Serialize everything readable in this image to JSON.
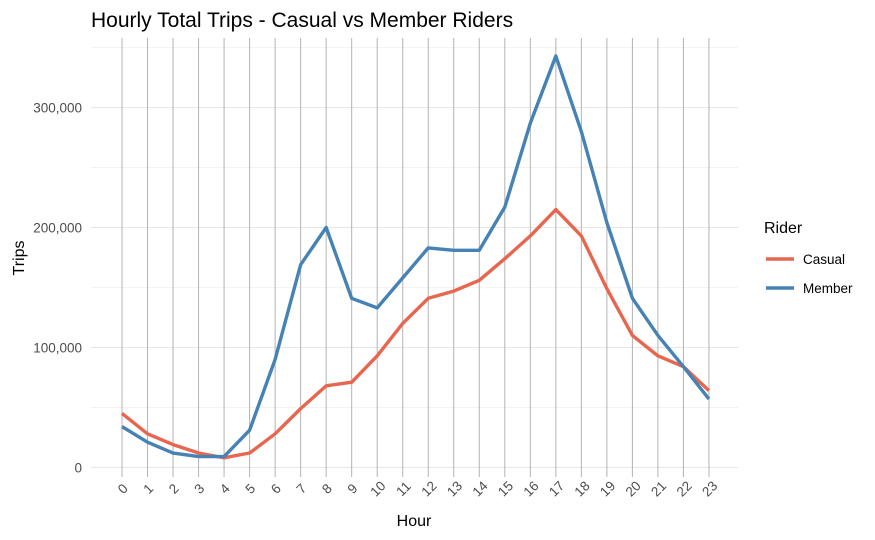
{
  "chart_data": {
    "type": "line",
    "title": "Hourly Total Trips - Casual vs Member Riders",
    "xlabel": "Hour",
    "ylabel": "Trips",
    "x": [
      0,
      1,
      2,
      3,
      4,
      5,
      6,
      7,
      8,
      9,
      10,
      11,
      12,
      13,
      14,
      15,
      16,
      17,
      18,
      19,
      20,
      21,
      22,
      23
    ],
    "x_tick_labels": [
      "0",
      "1",
      "2",
      "3",
      "4",
      "5",
      "6",
      "7",
      "8",
      "9",
      "10",
      "11",
      "12",
      "13",
      "14",
      "15",
      "16",
      "17",
      "18",
      "19",
      "20",
      "21",
      "22",
      "23"
    ],
    "y_ticks": [
      0,
      100000,
      200000,
      300000
    ],
    "y_tick_labels": [
      "0",
      "100,000",
      "200,000",
      "300,000"
    ],
    "ylim": [
      -8000,
      358000
    ],
    "legend_title": "Rider",
    "legend_position": "right",
    "grid": true,
    "series": [
      {
        "name": "Casual",
        "color": "#e8664f",
        "values": [
          45000,
          28000,
          19000,
          12000,
          8000,
          12000,
          28000,
          49000,
          68000,
          71000,
          93000,
          120000,
          141000,
          147000,
          156000,
          174000,
          193000,
          215000,
          193000,
          149000,
          110000,
          93000,
          84000,
          64000
        ]
      },
      {
        "name": "Member",
        "color": "#4682b4",
        "values": [
          34000,
          21000,
          12000,
          9000,
          9000,
          31000,
          90000,
          169000,
          200000,
          141000,
          133000,
          158000,
          183000,
          181000,
          181000,
          217000,
          287000,
          343000,
          280000,
          204000,
          141000,
          110000,
          84000,
          57000
        ]
      }
    ]
  }
}
